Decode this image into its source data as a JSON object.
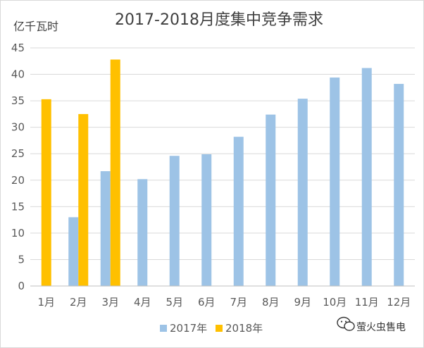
{
  "chart_data": {
    "type": "bar",
    "title": "2017-2018月度集中竞争需求",
    "ylabel": "亿千瓦时",
    "xlabel": "",
    "ylim": [
      0,
      45
    ],
    "ytick_step": 5,
    "grid": true,
    "legend_position": "bottom",
    "categories": [
      "1月",
      "2月",
      "3月",
      "4月",
      "5月",
      "6月",
      "7月",
      "8月",
      "9月",
      "10月",
      "11月",
      "12月"
    ],
    "series": [
      {
        "name": "2017年",
        "color": "#9DC3E6",
        "values": [
          null,
          13.0,
          21.7,
          20.2,
          24.6,
          24.9,
          28.2,
          32.4,
          35.4,
          39.4,
          41.2,
          38.2
        ]
      },
      {
        "name": "2018年",
        "color": "#FFC000",
        "values": [
          35.3,
          32.5,
          42.8,
          null,
          null,
          null,
          null,
          null,
          null,
          null,
          null,
          null
        ]
      }
    ]
  },
  "watermark": {
    "text": "萤火虫售电",
    "icon": "wechat-icon",
    "color": "#333333"
  },
  "colors": {
    "axis": "#bfbfbf",
    "grid": "#d9d9d9"
  }
}
